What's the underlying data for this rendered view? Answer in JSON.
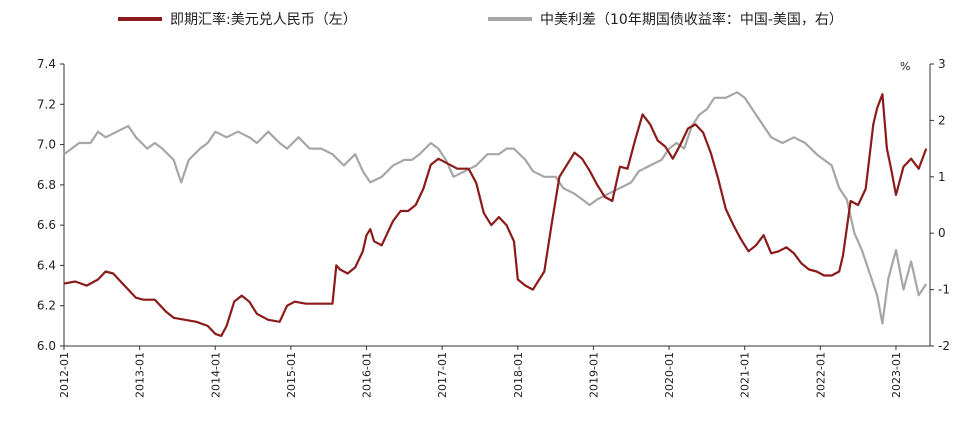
{
  "chart_data": {
    "type": "line",
    "left_axis": {
      "ticks": [
        "6.0",
        "6.2",
        "6.4",
        "6.6",
        "6.8",
        "7.0",
        "7.2",
        "7.4"
      ],
      "ylim": [
        6.0,
        7.4
      ]
    },
    "right_axis": {
      "unit": "%",
      "ticks": [
        "-2",
        "-1",
        "0",
        "1",
        "2",
        "3"
      ],
      "ylim": [
        -2,
        3
      ]
    },
    "x_ticks": [
      "2012-01",
      "2013-01",
      "2014-01",
      "2015-01",
      "2016-01",
      "2017-01",
      "2018-01",
      "2019-01",
      "2020-01",
      "2021-01",
      "2022-01",
      "2023-01"
    ],
    "x_range": [
      2012.0,
      2023.45
    ],
    "series": [
      {
        "name": "即期汇率:美元兑人民币（左）",
        "axis": "left",
        "color": "#8B1A1A",
        "x": [
          2012.0,
          2012.15,
          2012.3,
          2012.45,
          2012.55,
          2012.65,
          2012.8,
          2012.95,
          2013.05,
          2013.2,
          2013.35,
          2013.45,
          2013.6,
          2013.75,
          2013.9,
          2014.0,
          2014.08,
          2014.15,
          2014.25,
          2014.35,
          2014.45,
          2014.55,
          2014.7,
          2014.85,
          2014.95,
          2015.05,
          2015.2,
          2015.35,
          2015.55,
          2015.6,
          2015.65,
          2015.75,
          2015.85,
          2015.95,
          2016.0,
          2016.05,
          2016.1,
          2016.2,
          2016.3,
          2016.35,
          2016.45,
          2016.55,
          2016.65,
          2016.75,
          2016.85,
          2016.95,
          2017.0,
          2017.1,
          2017.2,
          2017.35,
          2017.45,
          2017.55,
          2017.65,
          2017.75,
          2017.85,
          2017.95,
          2018.0,
          2018.1,
          2018.2,
          2018.35,
          2018.45,
          2018.55,
          2018.65,
          2018.75,
          2018.85,
          2018.95,
          2019.05,
          2019.15,
          2019.25,
          2019.35,
          2019.45,
          2019.55,
          2019.65,
          2019.75,
          2019.85,
          2019.95,
          2020.05,
          2020.15,
          2020.25,
          2020.35,
          2020.45,
          2020.55,
          2020.65,
          2020.75,
          2020.85,
          2020.95,
          2021.05,
          2021.15,
          2021.25,
          2021.35,
          2021.45,
          2021.55,
          2021.65,
          2021.75,
          2021.85,
          2021.95,
          2022.05,
          2022.15,
          2022.25,
          2022.3,
          2022.4,
          2022.5,
          2022.6,
          2022.7,
          2022.75,
          2022.82,
          2022.88,
          2022.93,
          2023.0,
          2023.1,
          2023.2,
          2023.3,
          2023.4
        ],
        "values": [
          6.31,
          6.32,
          6.3,
          6.33,
          6.37,
          6.36,
          6.3,
          6.24,
          6.23,
          6.23,
          6.17,
          6.14,
          6.13,
          6.12,
          6.1,
          6.06,
          6.05,
          6.1,
          6.22,
          6.25,
          6.22,
          6.16,
          6.13,
          6.12,
          6.2,
          6.22,
          6.21,
          6.21,
          6.21,
          6.4,
          6.38,
          6.36,
          6.39,
          6.47,
          6.55,
          6.58,
          6.52,
          6.5,
          6.58,
          6.62,
          6.67,
          6.67,
          6.7,
          6.78,
          6.9,
          6.93,
          6.92,
          6.9,
          6.88,
          6.88,
          6.81,
          6.66,
          6.6,
          6.64,
          6.6,
          6.52,
          6.33,
          6.3,
          6.28,
          6.37,
          6.61,
          6.84,
          6.9,
          6.96,
          6.93,
          6.87,
          6.8,
          6.74,
          6.72,
          6.89,
          6.88,
          7.02,
          7.15,
          7.1,
          7.02,
          6.99,
          6.93,
          7.0,
          7.08,
          7.1,
          7.06,
          6.96,
          6.83,
          6.68,
          6.6,
          6.53,
          6.47,
          6.5,
          6.55,
          6.46,
          6.47,
          6.49,
          6.46,
          6.41,
          6.38,
          6.37,
          6.35,
          6.35,
          6.37,
          6.45,
          6.72,
          6.7,
          6.78,
          7.1,
          7.18,
          7.25,
          6.98,
          6.89,
          6.75,
          6.89,
          6.93,
          6.88,
          6.98
        ]
      },
      {
        "name": "中美利差（10年期国债收益率：中国-美国，右）",
        "axis": "right",
        "color": "#A6A6A6",
        "x": [
          2012.0,
          2012.1,
          2012.2,
          2012.35,
          2012.45,
          2012.55,
          2012.7,
          2012.85,
          2012.95,
          2013.1,
          2013.2,
          2013.3,
          2013.45,
          2013.5,
          2013.55,
          2013.65,
          2013.8,
          2013.9,
          2014.0,
          2014.15,
          2014.3,
          2014.45,
          2014.55,
          2014.7,
          2014.85,
          2014.95,
          2015.1,
          2015.25,
          2015.4,
          2015.55,
          2015.7,
          2015.85,
          2015.95,
          2016.05,
          2016.2,
          2016.35,
          2016.5,
          2016.6,
          2016.7,
          2016.85,
          2016.95,
          2017.05,
          2017.15,
          2017.3,
          2017.45,
          2017.6,
          2017.75,
          2017.85,
          2017.95,
          2018.1,
          2018.2,
          2018.35,
          2018.5,
          2018.6,
          2018.75,
          2018.85,
          2018.95,
          2019.05,
          2019.2,
          2019.35,
          2019.5,
          2019.6,
          2019.75,
          2019.9,
          2020.0,
          2020.1,
          2020.2,
          2020.3,
          2020.4,
          2020.5,
          2020.6,
          2020.75,
          2020.9,
          2021.0,
          2021.1,
          2021.2,
          2021.35,
          2021.5,
          2021.65,
          2021.8,
          2021.95,
          2022.05,
          2022.15,
          2022.25,
          2022.35,
          2022.45,
          2022.55,
          2022.65,
          2022.75,
          2022.82,
          2022.9,
          2023.0,
          2023.1,
          2023.2,
          2023.3,
          2023.4
        ],
        "values": [
          1.4,
          1.5,
          1.6,
          1.6,
          1.8,
          1.7,
          1.8,
          1.9,
          1.7,
          1.5,
          1.6,
          1.5,
          1.3,
          1.1,
          0.9,
          1.3,
          1.5,
          1.6,
          1.8,
          1.7,
          1.8,
          1.7,
          1.6,
          1.8,
          1.6,
          1.5,
          1.7,
          1.5,
          1.5,
          1.4,
          1.2,
          1.4,
          1.1,
          0.9,
          1.0,
          1.2,
          1.3,
          1.3,
          1.4,
          1.6,
          1.5,
          1.3,
          1.0,
          1.1,
          1.2,
          1.4,
          1.4,
          1.5,
          1.5,
          1.3,
          1.1,
          1.0,
          1.0,
          0.8,
          0.7,
          0.6,
          0.5,
          0.6,
          0.7,
          0.8,
          0.9,
          1.1,
          1.2,
          1.3,
          1.5,
          1.6,
          1.5,
          1.9,
          2.1,
          2.2,
          2.4,
          2.4,
          2.5,
          2.4,
          2.2,
          2.0,
          1.7,
          1.6,
          1.7,
          1.6,
          1.4,
          1.3,
          1.2,
          0.8,
          0.6,
          0.0,
          -0.3,
          -0.7,
          -1.1,
          -1.6,
          -0.8,
          -0.3,
          -1.0,
          -0.5,
          -1.1,
          -0.9
        ]
      }
    ]
  }
}
